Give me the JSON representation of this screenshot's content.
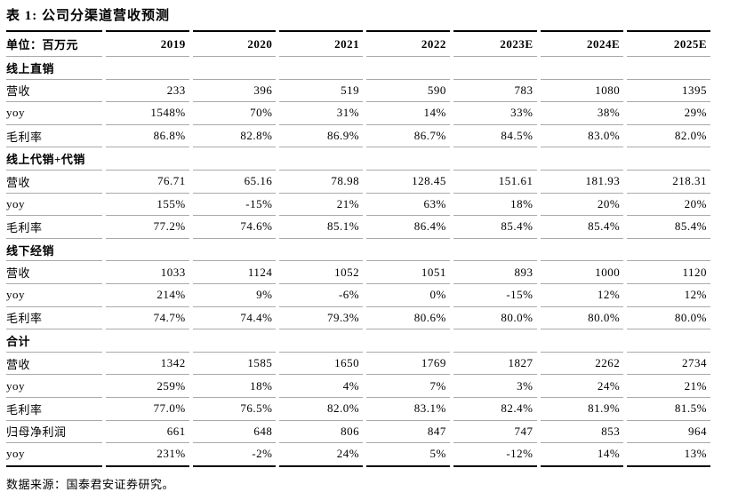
{
  "table": {
    "title": "表 1:  公司分渠道营收预测",
    "unit_label": "单位：百万元",
    "years": [
      "2019",
      "2020",
      "2021",
      "2022",
      "2023E",
      "2024E",
      "2025E"
    ],
    "sections": [
      {
        "name": "线上直销",
        "rows": [
          {
            "label": "营收",
            "values": [
              "233",
              "396",
              "519",
              "590",
              "783",
              "1080",
              "1395"
            ]
          },
          {
            "label": "yoy",
            "values": [
              "1548%",
              "70%",
              "31%",
              "14%",
              "33%",
              "38%",
              "29%"
            ]
          },
          {
            "label": "毛利率",
            "values": [
              "86.8%",
              "82.8%",
              "86.9%",
              "86.7%",
              "84.5%",
              "83.0%",
              "82.0%"
            ]
          }
        ]
      },
      {
        "name": "线上代销+代销",
        "rows": [
          {
            "label": "营收",
            "values": [
              "76.71",
              "65.16",
              "78.98",
              "128.45",
              "151.61",
              "181.93",
              "218.31"
            ]
          },
          {
            "label": "yoy",
            "values": [
              "155%",
              "-15%",
              "21%",
              "63%",
              "18%",
              "20%",
              "20%"
            ]
          },
          {
            "label": "毛利率",
            "values": [
              "77.2%",
              "74.6%",
              "85.1%",
              "86.4%",
              "85.4%",
              "85.4%",
              "85.4%"
            ]
          }
        ]
      },
      {
        "name": "线下经销",
        "rows": [
          {
            "label": "营收",
            "values": [
              "1033",
              "1124",
              "1052",
              "1051",
              "893",
              "1000",
              "1120"
            ]
          },
          {
            "label": "yoy",
            "values": [
              "214%",
              "9%",
              "-6%",
              "0%",
              "-15%",
              "12%",
              "12%"
            ]
          },
          {
            "label": "毛利率",
            "values": [
              "74.7%",
              "74.4%",
              "79.3%",
              "80.6%",
              "80.0%",
              "80.0%",
              "80.0%"
            ]
          }
        ]
      },
      {
        "name": "合计",
        "rows": [
          {
            "label": "营收",
            "values": [
              "1342",
              "1585",
              "1650",
              "1769",
              "1827",
              "2262",
              "2734"
            ]
          },
          {
            "label": "yoy",
            "values": [
              "259%",
              "18%",
              "4%",
              "7%",
              "3%",
              "24%",
              "21%"
            ]
          },
          {
            "label": "毛利率",
            "values": [
              "77.0%",
              "76.5%",
              "82.0%",
              "83.1%",
              "82.4%",
              "81.9%",
              "81.5%"
            ]
          },
          {
            "label": "归母净利润",
            "values": [
              "661",
              "648",
              "806",
              "847",
              "747",
              "853",
              "964"
            ]
          },
          {
            "label": "yoy",
            "values": [
              "231%",
              "-2%",
              "24%",
              "5%",
              "-12%",
              "14%",
              "13%"
            ]
          }
        ]
      }
    ],
    "source": "数据来源：国泰君安证券研究。"
  },
  "colors": {
    "text": "#000000",
    "background": "#ffffff",
    "rule_light": "#a9a9a9",
    "rule_dark": "#000000"
  }
}
